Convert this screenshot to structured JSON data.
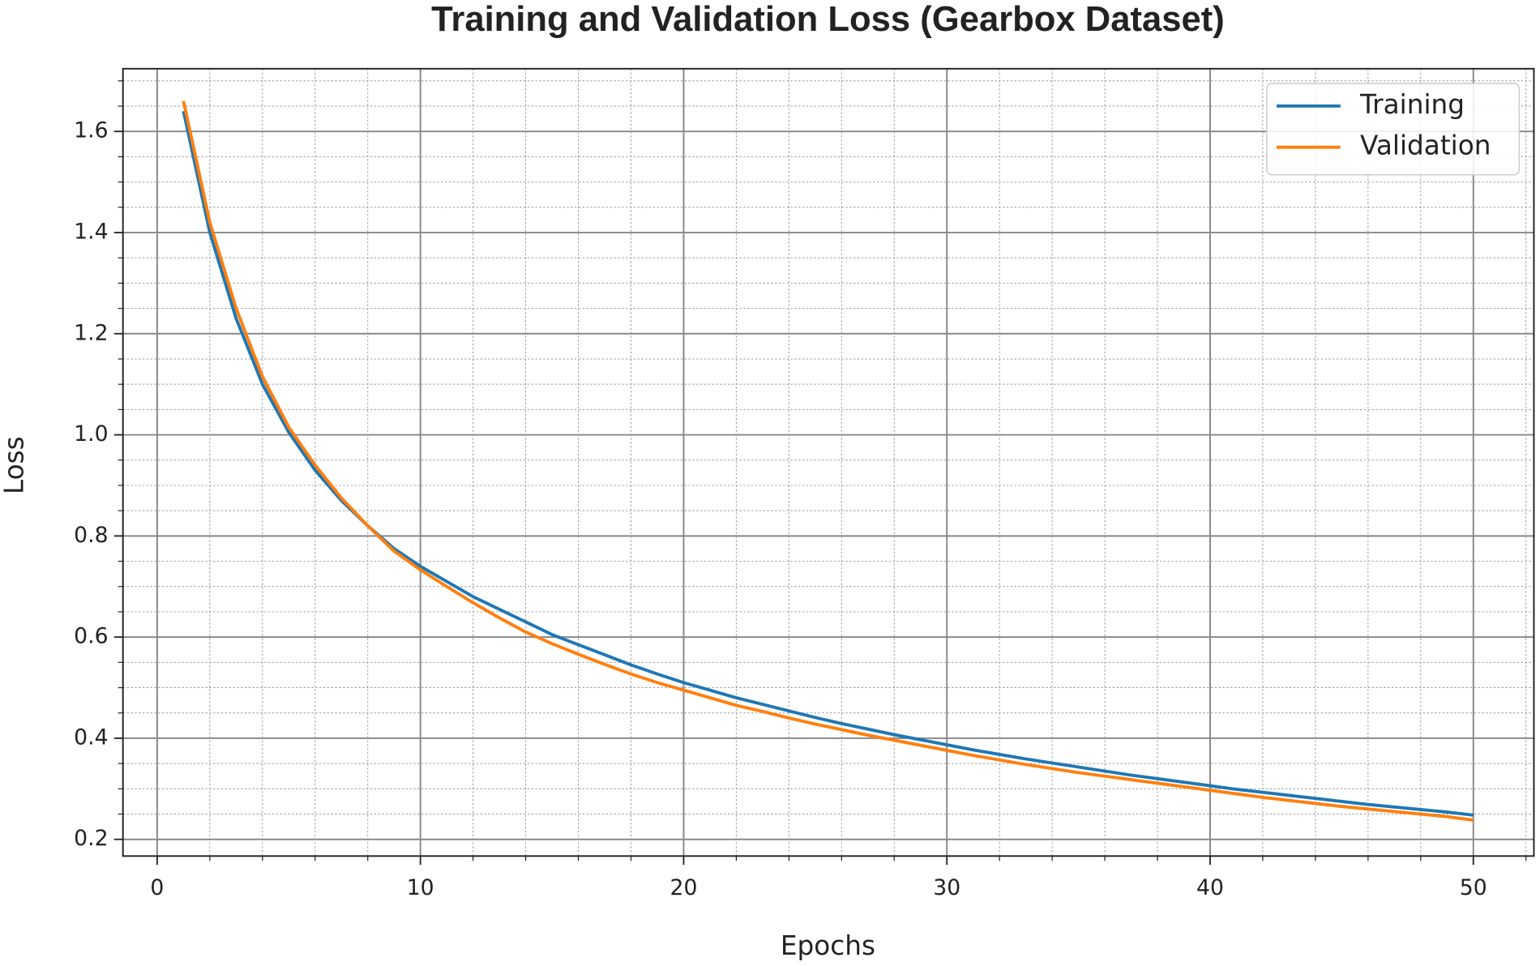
{
  "chart_data": {
    "type": "line",
    "title": "Training and Validation Loss (Gearbox Dataset)",
    "x_label": "Epochs",
    "y_label": "Loss",
    "x": [
      1,
      2,
      3,
      4,
      5,
      6,
      7,
      8,
      9,
      10,
      11,
      12,
      13,
      14,
      15,
      16,
      17,
      18,
      19,
      20,
      21,
      22,
      23,
      24,
      25,
      26,
      27,
      28,
      29,
      30,
      31,
      32,
      33,
      34,
      35,
      36,
      37,
      38,
      39,
      40,
      41,
      42,
      43,
      44,
      45,
      46,
      47,
      48,
      49,
      50
    ],
    "series": [
      {
        "name": "Training",
        "color": "#1f77b4",
        "values": [
          1.64,
          1.4,
          1.23,
          1.1,
          1.005,
          0.93,
          0.87,
          0.82,
          0.775,
          0.74,
          0.71,
          0.68,
          0.655,
          0.63,
          0.605,
          0.585,
          0.565,
          0.545,
          0.527,
          0.51,
          0.495,
          0.48,
          0.467,
          0.454,
          0.441,
          0.429,
          0.418,
          0.407,
          0.397,
          0.387,
          0.377,
          0.368,
          0.359,
          0.351,
          0.343,
          0.335,
          0.327,
          0.32,
          0.313,
          0.306,
          0.299,
          0.293,
          0.287,
          0.281,
          0.275,
          0.269,
          0.264,
          0.259,
          0.254,
          0.248
        ]
      },
      {
        "name": "Validation",
        "color": "#ff7f0e",
        "values": [
          1.66,
          1.42,
          1.25,
          1.115,
          1.015,
          0.94,
          0.875,
          0.82,
          0.77,
          0.733,
          0.7,
          0.668,
          0.638,
          0.61,
          0.587,
          0.566,
          0.546,
          0.527,
          0.51,
          0.495,
          0.48,
          0.465,
          0.453,
          0.44,
          0.428,
          0.417,
          0.406,
          0.396,
          0.386,
          0.376,
          0.366,
          0.357,
          0.348,
          0.34,
          0.332,
          0.325,
          0.318,
          0.311,
          0.304,
          0.297,
          0.29,
          0.283,
          0.277,
          0.271,
          0.265,
          0.26,
          0.255,
          0.25,
          0.245,
          0.238
        ]
      }
    ],
    "xlim": [
      -1.3,
      52.3
    ],
    "xticks": [
      0,
      10,
      20,
      30,
      40,
      50
    ],
    "ylim": [
      0.167,
      1.724
    ],
    "yticks": [
      0.2,
      0.4,
      0.6,
      0.8,
      {
        "value": 1.0,
        "label": "1.0"
      },
      1.2,
      1.4,
      1.6
    ],
    "grid": true,
    "minor_grid": true,
    "legend": "upper right"
  }
}
